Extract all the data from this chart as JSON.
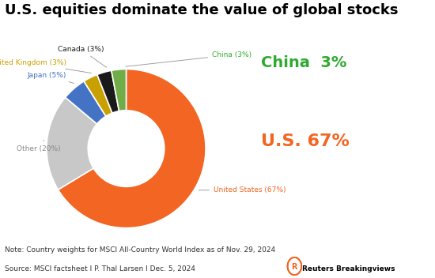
{
  "title": "U.S. equities dominate the value of global stocks",
  "slices": [
    {
      "label": "United States",
      "pct": 67,
      "color": "#F26522"
    },
    {
      "label": "Other",
      "pct": 20,
      "color": "#C8C8C8"
    },
    {
      "label": "Japan",
      "pct": 5,
      "color": "#4472C4"
    },
    {
      "label": "United Kingdom",
      "pct": 3,
      "color": "#C8A000"
    },
    {
      "label": "Canada",
      "pct": 3,
      "color": "#1A1A1A"
    },
    {
      "label": "China",
      "pct": 3,
      "color": "#70AD47"
    }
  ],
  "note": "Note: Country weights for MSCI All-Country World Index as of Nov. 29, 2024",
  "source": "Source: MSCI factsheet I P. Thal Larsen I Dec. 5, 2024",
  "us_big_label": "U.S. 67%",
  "china_big_label": "China  3%",
  "us_color": "#F26522",
  "china_color": "#2EAA2E",
  "background_color": "#FFFFFF",
  "title_fontsize": 13,
  "note_fontsize": 6.5,
  "startangle": 90
}
